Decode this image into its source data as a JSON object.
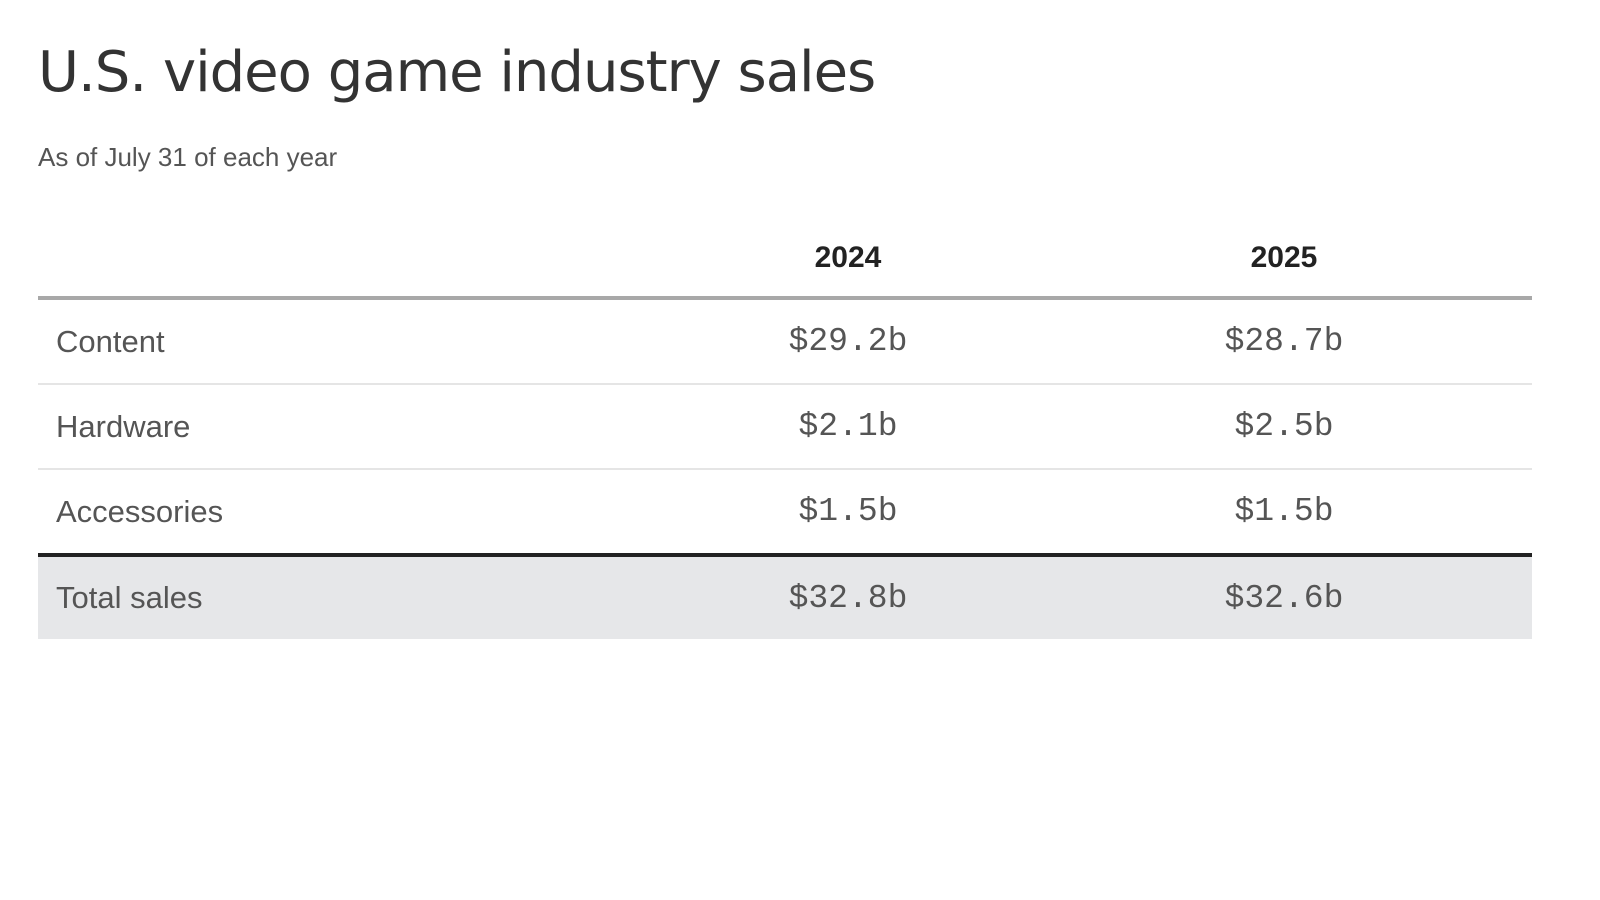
{
  "chart_data": {
    "type": "table",
    "title": "U.S. video game industry sales",
    "subtitle": "As of July 31 of each year",
    "columns": [
      "",
      "2024",
      "2025"
    ],
    "rows": [
      {
        "label": "Content",
        "values": [
          "$29.2b",
          "$28.7b"
        ]
      },
      {
        "label": "Hardware",
        "values": [
          "$2.1b",
          "$2.5b"
        ]
      },
      {
        "label": "Accessories",
        "values": [
          "$1.5b",
          "$1.5b"
        ]
      }
    ],
    "total": {
      "label": "Total sales",
      "values": [
        "$32.8b",
        "$32.6b"
      ]
    },
    "colors": {
      "text": "#333333",
      "muted_text": "#555555",
      "header_rule": "#a8a8a8",
      "row_rule": "#e5e5e5",
      "total_rule": "#222222",
      "total_background": "#e6e7e9"
    }
  }
}
